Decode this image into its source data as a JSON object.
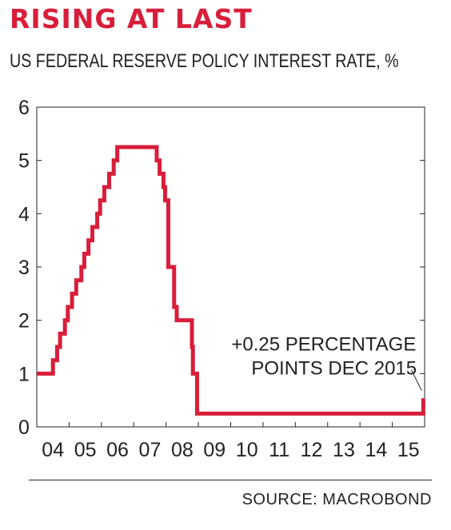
{
  "header": {
    "title": "RISING AT LAST",
    "subtitle": "US FEDERAL RESERVE POLICY INTEREST RATE, %"
  },
  "footer": {
    "source": "SOURCE: MACROBOND"
  },
  "colors": {
    "accent": "#d81e3a",
    "text": "#222222"
  },
  "chart_data": {
    "type": "line",
    "title": "RISING AT LAST",
    "subtitle": "US FEDERAL RESERVE POLICY INTEREST RATE, %",
    "xlabel": "",
    "ylabel": "",
    "x_ticks": [
      "04",
      "05",
      "06",
      "07",
      "08",
      "09",
      "10",
      "11",
      "12",
      "13",
      "14",
      "15"
    ],
    "y_ticks": [
      "0",
      "1",
      "2",
      "3",
      "4",
      "5",
      "6"
    ],
    "xlim": [
      2004.0,
      2016.0
    ],
    "ylim": [
      0,
      6
    ],
    "grid": false,
    "step": true,
    "series": [
      {
        "color": "#d81e3a",
        "points": [
          [
            2004.0,
            1.0
          ],
          [
            2004.5,
            1.25
          ],
          [
            2004.63,
            1.5
          ],
          [
            2004.72,
            1.75
          ],
          [
            2004.87,
            2.0
          ],
          [
            2004.96,
            2.25
          ],
          [
            2005.09,
            2.5
          ],
          [
            2005.22,
            2.75
          ],
          [
            2005.38,
            3.0
          ],
          [
            2005.47,
            3.25
          ],
          [
            2005.6,
            3.5
          ],
          [
            2005.72,
            3.75
          ],
          [
            2005.87,
            4.0
          ],
          [
            2005.96,
            4.25
          ],
          [
            2006.09,
            4.5
          ],
          [
            2006.24,
            4.75
          ],
          [
            2006.38,
            5.0
          ],
          [
            2006.49,
            5.25
          ],
          [
            2007.71,
            5.0
          ],
          [
            2007.8,
            4.75
          ],
          [
            2007.92,
            4.5
          ],
          [
            2007.97,
            4.25
          ],
          [
            2008.07,
            3.0
          ],
          [
            2008.12,
            3.0
          ],
          [
            2008.25,
            2.25
          ],
          [
            2008.33,
            2.0
          ],
          [
            2008.8,
            1.5
          ],
          [
            2008.83,
            1.0
          ],
          [
            2008.96,
            0.25
          ],
          [
            2015.96,
            0.5
          ],
          [
            2016.0,
            0.5
          ]
        ]
      }
    ],
    "annotations": [
      {
        "text": [
          "+0.25 PERCENTAGE",
          "POINTS DEC 2015"
        ]
      }
    ]
  }
}
